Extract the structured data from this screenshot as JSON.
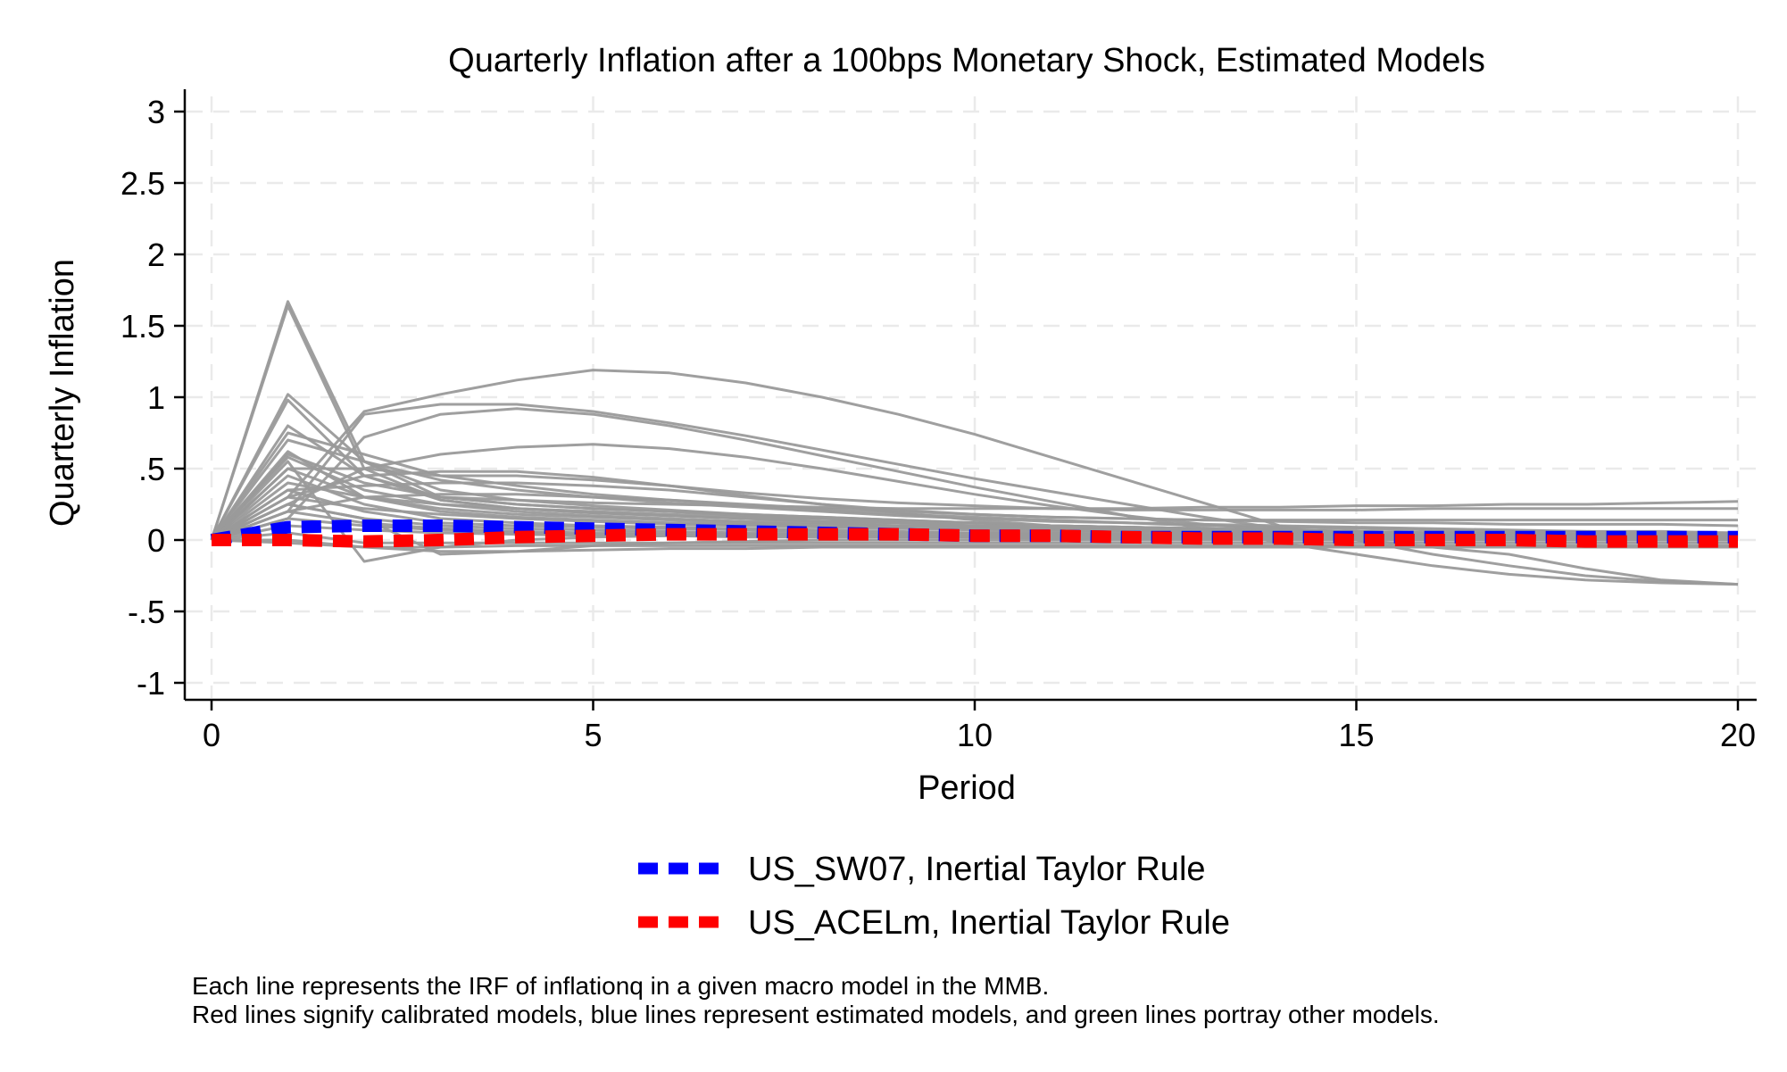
{
  "chart_data": {
    "type": "line",
    "title": "Quarterly Inflation after a 100bps Monetary Shock, Estimated Models",
    "xlabel": "Period",
    "ylabel": "Quarterly Inflation",
    "xlim": [
      0,
      20
    ],
    "ylim": [
      -1,
      3
    ],
    "x_ticks": [
      0,
      5,
      10,
      15,
      20
    ],
    "x_tick_labels": [
      "0",
      "5",
      "10",
      "15",
      "20"
    ],
    "y_ticks": [
      -1,
      -0.5,
      0,
      0.5,
      1,
      1.5,
      2,
      2.5,
      3
    ],
    "y_tick_labels": [
      "-1",
      "-.5",
      "0",
      ".5",
      "1",
      "1.5",
      "2",
      "2.5",
      "3"
    ],
    "grid": true,
    "grid_style": "dashed",
    "legend_position": "bottom",
    "legend": [
      {
        "label": "US_SW07, Inertial Taylor Rule",
        "color": "#0000ff",
        "style": "dashed"
      },
      {
        "label": "US_ACELm, Inertial Taylor Rule",
        "color": "#ff0000",
        "style": "dashed"
      }
    ],
    "note": [
      "Each line represents the IRF of inflationq in a given macro model in the MMB.",
      "Red lines signify calibrated models, blue lines represent estimated models, and green lines portray other models."
    ],
    "x": [
      0,
      1,
      2,
      3,
      4,
      5,
      6,
      7,
      8,
      9,
      10,
      11,
      12,
      13,
      14,
      15,
      16,
      17,
      18,
      19,
      20
    ],
    "highlight_series": [
      {
        "name": "US_SW07, Inertial Taylor Rule",
        "color": "#0000ff",
        "values": [
          0.0,
          0.09,
          0.1,
          0.1,
          0.09,
          0.08,
          0.07,
          0.06,
          0.05,
          0.04,
          0.03,
          0.03,
          0.02,
          0.02,
          0.02,
          0.02,
          0.02,
          0.02,
          0.02,
          0.02,
          0.02
        ]
      },
      {
        "name": "US_ACELm, Inertial Taylor Rule",
        "color": "#ff0000",
        "values": [
          0.0,
          0.0,
          -0.01,
          0.0,
          0.02,
          0.03,
          0.04,
          0.04,
          0.04,
          0.04,
          0.03,
          0.03,
          0.02,
          0.01,
          0.01,
          0.0,
          0.0,
          0.0,
          -0.01,
          -0.01,
          -0.01
        ]
      }
    ],
    "background_series": {
      "color": "#9a9a9a",
      "lines": [
        [
          0.0,
          1.67,
          0.55,
          0.3,
          0.25,
          0.22,
          0.2,
          0.18,
          0.16,
          0.14,
          0.12,
          0.1,
          0.09,
          0.08,
          0.07,
          0.06,
          0.05,
          0.05,
          0.04,
          0.04,
          0.04
        ],
        [
          0.0,
          1.64,
          0.5,
          0.28,
          0.22,
          0.2,
          0.18,
          0.16,
          0.15,
          0.13,
          0.12,
          0.1,
          0.09,
          0.08,
          0.07,
          0.06,
          0.05,
          0.05,
          0.04,
          0.04,
          0.04
        ],
        [
          0.0,
          1.02,
          0.55,
          0.35,
          0.28,
          0.24,
          0.21,
          0.18,
          0.16,
          0.14,
          0.12,
          0.1,
          0.09,
          0.08,
          0.07,
          0.06,
          0.05,
          0.05,
          0.04,
          0.04,
          0.03
        ],
        [
          0.0,
          0.98,
          0.45,
          0.3,
          0.25,
          0.22,
          0.2,
          0.17,
          0.15,
          0.13,
          0.12,
          0.1,
          0.09,
          0.08,
          0.07,
          0.06,
          0.05,
          0.05,
          0.04,
          0.04,
          0.03
        ],
        [
          0.0,
          0.8,
          0.45,
          0.28,
          0.22,
          0.19,
          0.17,
          0.15,
          0.13,
          0.12,
          0.1,
          0.09,
          0.08,
          0.07,
          0.06,
          0.05,
          0.05,
          0.04,
          0.04,
          0.03,
          0.03
        ],
        [
          0.0,
          0.62,
          0.3,
          0.2,
          0.16,
          0.14,
          0.12,
          0.11,
          0.1,
          0.09,
          0.08,
          0.07,
          0.06,
          0.06,
          0.05,
          0.05,
          0.04,
          0.04,
          0.04,
          0.03,
          0.03
        ],
        [
          0.0,
          0.58,
          0.35,
          0.25,
          0.2,
          0.17,
          0.15,
          0.13,
          0.12,
          0.1,
          0.09,
          0.08,
          0.07,
          0.06,
          0.06,
          0.05,
          0.05,
          0.04,
          0.04,
          0.03,
          0.03
        ],
        [
          0.0,
          0.55,
          -0.15,
          -0.05,
          0.0,
          0.02,
          0.03,
          0.03,
          0.03,
          0.02,
          0.02,
          0.02,
          0.01,
          0.01,
          0.01,
          0.01,
          0.0,
          0.0,
          0.0,
          0.0,
          0.0
        ],
        [
          0.0,
          0.5,
          0.3,
          0.22,
          0.18,
          0.16,
          0.14,
          0.12,
          0.11,
          0.1,
          0.09,
          0.08,
          0.07,
          0.06,
          0.06,
          0.05,
          0.04,
          0.04,
          0.04,
          0.03,
          0.03
        ],
        [
          0.0,
          0.45,
          0.25,
          0.15,
          0.12,
          0.1,
          0.09,
          0.08,
          0.07,
          0.06,
          0.05,
          0.05,
          0.04,
          0.04,
          0.03,
          0.03,
          0.03,
          0.02,
          0.02,
          0.02,
          0.02
        ],
        [
          0.0,
          0.4,
          0.3,
          0.25,
          0.22,
          0.19,
          0.17,
          0.15,
          0.13,
          0.12,
          0.1,
          0.09,
          0.08,
          0.07,
          0.06,
          0.05,
          0.05,
          0.04,
          0.04,
          0.03,
          0.03
        ],
        [
          0.0,
          0.35,
          0.2,
          0.12,
          0.1,
          0.09,
          0.08,
          0.07,
          0.06,
          0.05,
          0.05,
          0.04,
          0.04,
          0.03,
          0.03,
          0.03,
          0.02,
          0.02,
          0.02,
          0.02,
          0.02
        ],
        [
          0.0,
          0.3,
          0.22,
          0.18,
          0.15,
          0.13,
          0.11,
          0.1,
          0.09,
          0.08,
          0.07,
          0.06,
          0.05,
          0.05,
          0.04,
          0.04,
          0.03,
          0.03,
          0.03,
          0.02,
          0.02
        ],
        [
          0.0,
          0.25,
          0.15,
          0.1,
          0.08,
          0.07,
          0.06,
          0.05,
          0.05,
          0.04,
          0.04,
          0.03,
          0.03,
          0.03,
          0.02,
          0.02,
          0.02,
          0.02,
          0.02,
          0.01,
          0.01
        ],
        [
          0.0,
          0.2,
          0.12,
          0.08,
          0.06,
          0.05,
          0.05,
          0.04,
          0.04,
          0.03,
          0.03,
          0.03,
          0.02,
          0.02,
          0.02,
          0.02,
          0.02,
          0.01,
          0.01,
          0.01,
          0.01
        ],
        [
          0.0,
          0.15,
          0.1,
          0.07,
          0.05,
          0.04,
          0.04,
          0.03,
          0.03,
          0.03,
          0.02,
          0.02,
          0.02,
          0.02,
          0.01,
          0.01,
          0.01,
          0.01,
          0.01,
          0.01,
          0.01
        ],
        [
          0.0,
          0.1,
          0.07,
          0.05,
          0.04,
          0.03,
          0.03,
          0.02,
          0.02,
          0.02,
          0.02,
          0.01,
          0.01,
          0.01,
          0.01,
          0.01,
          0.01,
          0.01,
          0.01,
          0.0,
          0.0
        ],
        [
          0.0,
          0.05,
          -0.02,
          -0.02,
          -0.02,
          -0.02,
          -0.02,
          -0.02,
          -0.02,
          -0.02,
          -0.02,
          -0.02,
          -0.02,
          -0.02,
          -0.02,
          -0.02,
          -0.02,
          -0.02,
          -0.02,
          -0.02,
          -0.02
        ],
        [
          0.0,
          0.0,
          -0.05,
          -0.05,
          -0.04,
          -0.04,
          -0.04,
          -0.04,
          -0.04,
          -0.04,
          -0.04,
          -0.04,
          -0.04,
          -0.04,
          -0.04,
          -0.04,
          -0.04,
          -0.04,
          -0.04,
          -0.04,
          -0.04
        ],
        [
          0.0,
          -0.02,
          -0.05,
          -0.08,
          -0.08,
          -0.07,
          -0.06,
          -0.06,
          -0.05,
          -0.05,
          -0.05,
          -0.05,
          -0.05,
          -0.05,
          -0.05,
          -0.05,
          -0.05,
          -0.05,
          -0.05,
          -0.05,
          -0.05
        ],
        [
          0.0,
          0.3,
          0.9,
          1.02,
          1.12,
          1.19,
          1.17,
          1.1,
          1.0,
          0.88,
          0.74,
          0.58,
          0.42,
          0.26,
          0.1,
          0.0,
          -0.05,
          -0.1,
          -0.2,
          -0.28,
          -0.31
        ],
        [
          0.0,
          0.2,
          0.88,
          0.95,
          0.95,
          0.9,
          0.82,
          0.73,
          0.63,
          0.53,
          0.43,
          0.34,
          0.25,
          0.16,
          0.08,
          0.0,
          -0.1,
          -0.18,
          -0.25,
          -0.29,
          -0.31
        ],
        [
          0.0,
          0.15,
          0.72,
          0.88,
          0.92,
          0.88,
          0.8,
          0.7,
          0.59,
          0.48,
          0.37,
          0.27,
          0.17,
          0.08,
          -0.02,
          -0.1,
          -0.18,
          -0.24,
          -0.28,
          -0.3,
          -0.31
        ],
        [
          0.0,
          0.6,
          0.4,
          0.3,
          0.28,
          0.26,
          0.25,
          0.24,
          0.23,
          0.22,
          0.22,
          0.22,
          0.22,
          0.23,
          0.23,
          0.24,
          0.24,
          0.25,
          0.25,
          0.26,
          0.27
        ],
        [
          0.0,
          0.5,
          0.5,
          0.45,
          0.45,
          0.42,
          0.38,
          0.33,
          0.29,
          0.26,
          0.24,
          0.22,
          0.21,
          0.21,
          0.21,
          0.21,
          0.22,
          0.22,
          0.22,
          0.22,
          0.22
        ],
        [
          0.0,
          0.25,
          0.5,
          0.6,
          0.65,
          0.67,
          0.64,
          0.58,
          0.5,
          0.41,
          0.32,
          0.24,
          0.17,
          0.11,
          0.07,
          0.04,
          0.02,
          0.01,
          0.0,
          0.0,
          0.0
        ],
        [
          0.0,
          0.3,
          0.45,
          0.48,
          0.48,
          0.44,
          0.38,
          0.31,
          0.25,
          0.19,
          0.14,
          0.1,
          0.07,
          0.05,
          0.03,
          0.02,
          0.01,
          0.01,
          0.0,
          0.0,
          0.0
        ],
        [
          0.0,
          0.35,
          0.38,
          0.4,
          0.4,
          0.38,
          0.35,
          0.3,
          0.25,
          0.21,
          0.18,
          0.16,
          0.15,
          0.14,
          0.14,
          0.14,
          0.14,
          0.14,
          0.14,
          0.14,
          0.14
        ],
        [
          0.0,
          0.2,
          0.3,
          0.32,
          0.32,
          0.3,
          0.28,
          0.25,
          0.22,
          0.2,
          0.18,
          0.16,
          0.15,
          0.14,
          0.13,
          0.12,
          0.12,
          0.11,
          0.11,
          0.11,
          0.1
        ],
        [
          0.0,
          0.25,
          0.15,
          -0.1,
          -0.08,
          -0.04,
          -0.02,
          -0.01,
          0.0,
          0.0,
          0.0,
          0.0,
          0.0,
          0.0,
          0.0,
          0.0,
          0.0,
          0.0,
          0.0,
          0.0,
          0.0
        ],
        [
          0.0,
          0.7,
          0.55,
          0.42,
          0.35,
          0.3,
          0.26,
          0.23,
          0.2,
          0.17,
          0.15,
          0.13,
          0.12,
          0.1,
          0.09,
          0.08,
          0.07,
          0.06,
          0.06,
          0.05,
          0.05
        ],
        [
          0.0,
          0.75,
          0.6,
          0.45,
          0.38,
          0.32,
          0.28,
          0.24,
          0.21,
          0.18,
          0.16,
          0.14,
          0.12,
          0.11,
          0.1,
          0.09,
          0.08,
          0.07,
          0.06,
          0.06,
          0.05
        ]
      ]
    }
  }
}
